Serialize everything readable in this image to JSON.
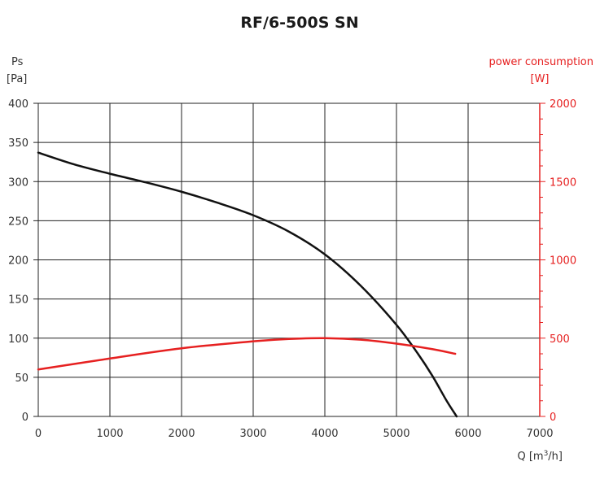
{
  "chart_data": {
    "type": "line",
    "title": "RF/6-500S SN",
    "xlabel": "Q [m³/h]",
    "xlabel_prefix": "Q [m",
    "xlabel_sup": "3",
    "xlabel_suffix": "/h]",
    "ylabel_line1": "Ps",
    "ylabel_line2": "[Pa]",
    "y2label_line1": "power consumption",
    "y2label_line2": "[W]",
    "xlim": [
      0,
      7000
    ],
    "ylim": [
      0,
      400
    ],
    "y2lim": [
      0,
      2000
    ],
    "x_ticks": [
      "0",
      "1000",
      "2000",
      "3000",
      "4000",
      "5000",
      "6000",
      "7000"
    ],
    "y_ticks": [
      "0",
      "50",
      "100",
      "150",
      "200",
      "250",
      "300",
      "350",
      "400"
    ],
    "y2_ticks": [
      "0",
      "500",
      "1000",
      "1500",
      "2000"
    ],
    "grid": true,
    "colors": {
      "pressure": "#111111",
      "power": "#e62020",
      "grid": "#222222"
    },
    "series": [
      {
        "axis": "left",
        "x": [
          0,
          500,
          1000,
          1500,
          2000,
          2500,
          3000,
          3500,
          4000,
          4500,
          5000,
          5300,
          5500,
          5700,
          5840
        ],
        "y": [
          337,
          322,
          310,
          299,
          287,
          273,
          257,
          236,
          207,
          167,
          117,
          80,
          52,
          20,
          0
        ]
      },
      {
        "axis": "right",
        "x": [
          0,
          1000,
          2000,
          3000,
          3500,
          4000,
          4500,
          5000,
          5500,
          5820
        ],
        "y": [
          300,
          370,
          435,
          480,
          495,
          500,
          490,
          465,
          430,
          400
        ]
      }
    ]
  }
}
